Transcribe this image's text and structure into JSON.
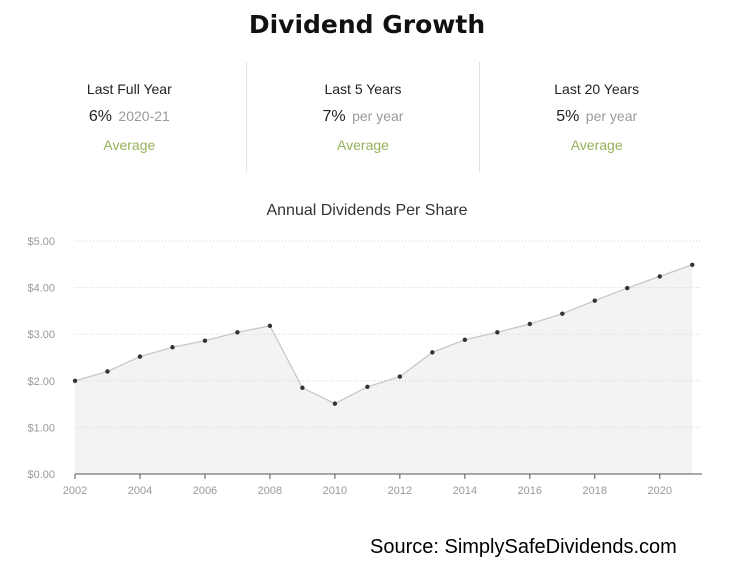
{
  "header": {
    "title": "Dividend Growth"
  },
  "stats": [
    {
      "label": "Last Full Year",
      "value": "6%",
      "unit": "2020-21",
      "note": "Average"
    },
    {
      "label": "Last 5 Years",
      "value": "7%",
      "unit": "per year",
      "note": "Average"
    },
    {
      "label": "Last 20 Years",
      "value": "5%",
      "unit": "per year",
      "note": "Average"
    }
  ],
  "source": "Source: SimplySafeDividends.com",
  "chart_data": {
    "type": "area",
    "title": "Annual Dividends Per Share",
    "xlabel": "",
    "ylabel": "",
    "x": [
      2002,
      2003,
      2004,
      2005,
      2006,
      2007,
      2008,
      2009,
      2010,
      2011,
      2012,
      2013,
      2014,
      2015,
      2016,
      2017,
      2018,
      2019,
      2020,
      2021
    ],
    "values": [
      2.0,
      2.2,
      2.52,
      2.72,
      2.86,
      3.04,
      3.18,
      1.85,
      1.51,
      1.87,
      2.09,
      2.61,
      2.88,
      3.04,
      3.22,
      3.44,
      3.72,
      3.99,
      4.24,
      4.49
    ],
    "ylim": [
      0,
      5
    ],
    "xlim": [
      2002,
      2021.3
    ],
    "y_ticks": [
      "$0.00",
      "$1.00",
      "$2.00",
      "$3.00",
      "$4.00",
      "$5.00"
    ],
    "x_ticks": [
      "2002",
      "2004",
      "2006",
      "2008",
      "2010",
      "2012",
      "2014",
      "2016",
      "2018",
      "2020"
    ],
    "grid": true,
    "colors": {
      "fill": "#f3f3f3",
      "line": "#c8c8c8",
      "marker": "#333333",
      "grid": "#d4d4d4",
      "axis": "#555555",
      "tick_label": "#999999"
    }
  }
}
